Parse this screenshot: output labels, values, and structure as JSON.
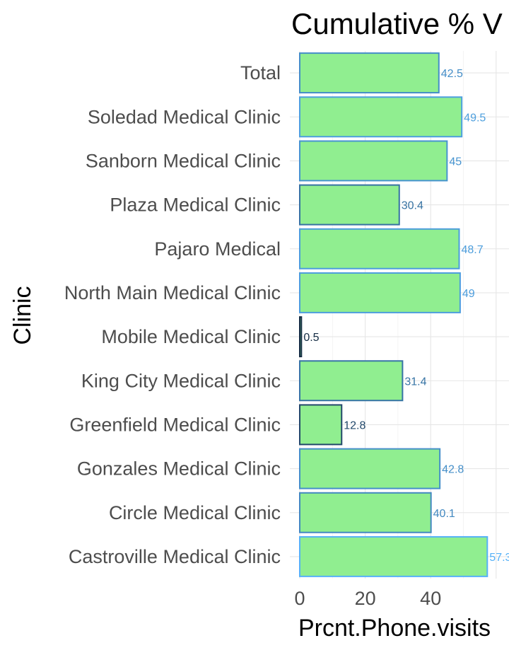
{
  "chart_data": {
    "type": "bar",
    "orientation": "horizontal",
    "title": "Cumulative % V",
    "xlabel": "Prcnt.Phone.visits",
    "ylabel": "Clinic",
    "xlim": [
      0,
      60
    ],
    "xticks": [
      0,
      20,
      40
    ],
    "grid": true,
    "legend": "none",
    "bar_fill": "#90EE90",
    "color_scale": {
      "low": "#132B43",
      "high": "#56B1F7",
      "min": 0.5,
      "max": 57.3
    },
    "categories": [
      "Total",
      "Soledad Medical Clinic",
      "Sanborn Medical Clinic",
      "Plaza Medical Clinic",
      "Pajaro Medical",
      "North Main Medical Clinic",
      "Mobile Medical Clinic",
      "King City Medical Clinic",
      "Greenfield Medical Clinic",
      "Gonzales Medical Clinic",
      "Circle Medical Clinic",
      "Castroville Medical Clinic"
    ],
    "values": [
      42.5,
      49.5,
      45,
      30.4,
      48.7,
      49,
      0.5,
      31.4,
      12.8,
      42.8,
      40.1,
      57.3
    ],
    "value_labels": [
      "42.5",
      "49.5",
      "45",
      "30.4",
      "48.7",
      "49",
      "0.5",
      "31.4",
      "12.8",
      "42.8",
      "40.1",
      "57.3"
    ]
  }
}
